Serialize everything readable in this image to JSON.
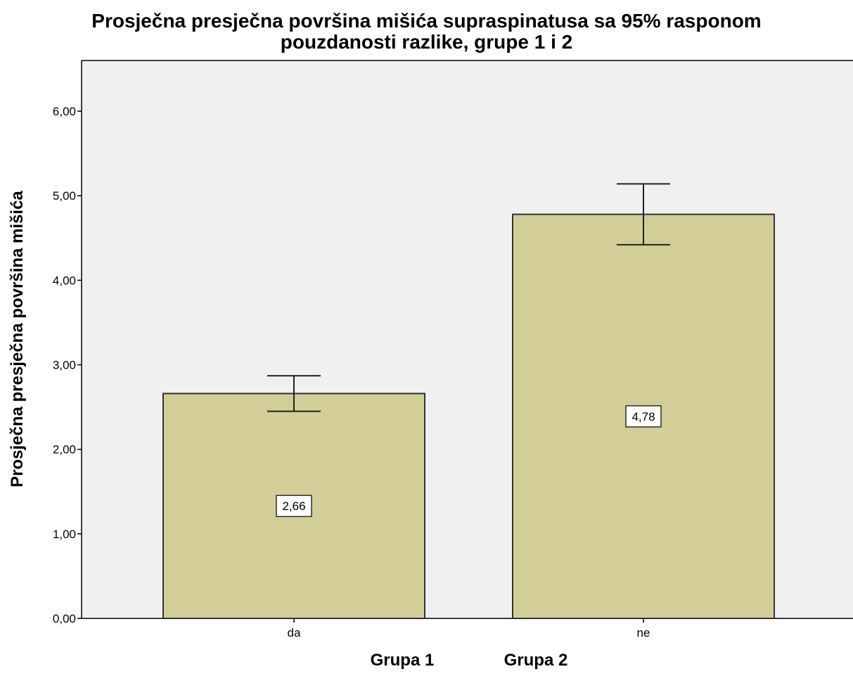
{
  "chart_data": {
    "type": "bar",
    "title_lines": [
      "Prosječna presječna površina  mišića supraspinatusa sa 95% rasponom",
      "pouzdanosti razlike, grupe 1 i 2"
    ],
    "xlabel_groups": [
      "Grupa 1",
      "Grupa 2"
    ],
    "ylabel": "Prosječna presječna površina mišića",
    "categories": [
      "da",
      "ne"
    ],
    "values": [
      2.66,
      4.78
    ],
    "value_labels": [
      "2,66",
      "4,78"
    ],
    "error_bars": [
      {
        "lower": 2.45,
        "upper": 2.87
      },
      {
        "lower": 4.42,
        "upper": 5.14
      }
    ],
    "ylim": [
      0,
      6.6
    ],
    "yticks": [
      0,
      1,
      2,
      3,
      4,
      5,
      6
    ],
    "ytick_labels": [
      "0,00",
      "1,00",
      "2,00",
      "3,00",
      "4,00",
      "5,00",
      "6,00"
    ],
    "grid": false,
    "colors": {
      "bar_fill": "#D3CE98",
      "bar_stroke": "#333333",
      "plot_background": "#F0F0F0",
      "error_bar": "#222222"
    }
  }
}
